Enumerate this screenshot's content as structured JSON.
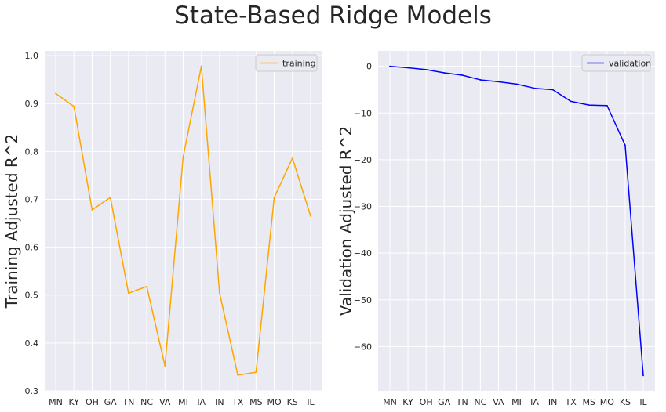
{
  "figure": {
    "title": "State-Based Ridge Models"
  },
  "chart_data": [
    {
      "type": "line",
      "categories": [
        "MN",
        "KY",
        "OH",
        "GA",
        "TN",
        "NC",
        "VA",
        "MI",
        "IA",
        "IN",
        "TX",
        "MS",
        "MO",
        "KS",
        "IL"
      ],
      "series": [
        {
          "name": "training",
          "color": "#ffa500",
          "values": [
            0.921,
            0.894,
            0.678,
            0.704,
            0.504,
            0.518,
            0.352,
            0.789,
            0.978,
            0.504,
            0.333,
            0.339,
            0.704,
            0.786,
            0.665
          ]
        }
      ],
      "ylabel": "Training Adjusted R^2",
      "xlabel": "",
      "ylim": [
        0.3,
        1.01
      ],
      "yticks": [
        0.3,
        0.4,
        0.5,
        0.6,
        0.7,
        0.8,
        0.9,
        1.0
      ],
      "ytick_labels": [
        "0.3",
        "0.4",
        "0.5",
        "0.6",
        "0.7",
        "0.8",
        "0.9",
        "1.0"
      ],
      "grid": true,
      "legend": "top-right"
    },
    {
      "type": "line",
      "categories": [
        "MN",
        "KY",
        "OH",
        "GA",
        "TN",
        "NC",
        "VA",
        "MI",
        "IA",
        "IN",
        "TX",
        "MS",
        "MO",
        "KS",
        "IL"
      ],
      "series": [
        {
          "name": "validation",
          "color": "#0000ff",
          "values": [
            0.0,
            -0.3,
            -0.7,
            -1.4,
            -1.9,
            -2.9,
            -3.3,
            -3.8,
            -4.7,
            -5.0,
            -7.5,
            -8.3,
            -8.4,
            -16.9,
            -66.2
          ]
        }
      ],
      "ylabel": "Validation Adjusted R^2",
      "xlabel": "",
      "ylim": [
        -69.5,
        3.3
      ],
      "yticks": [
        0,
        -10,
        -20,
        -30,
        -40,
        -50,
        -60
      ],
      "ytick_labels": [
        "0",
        "−10",
        "−20",
        "−30",
        "−40",
        "−50",
        "−60"
      ],
      "grid": true,
      "legend": "top-right"
    }
  ]
}
